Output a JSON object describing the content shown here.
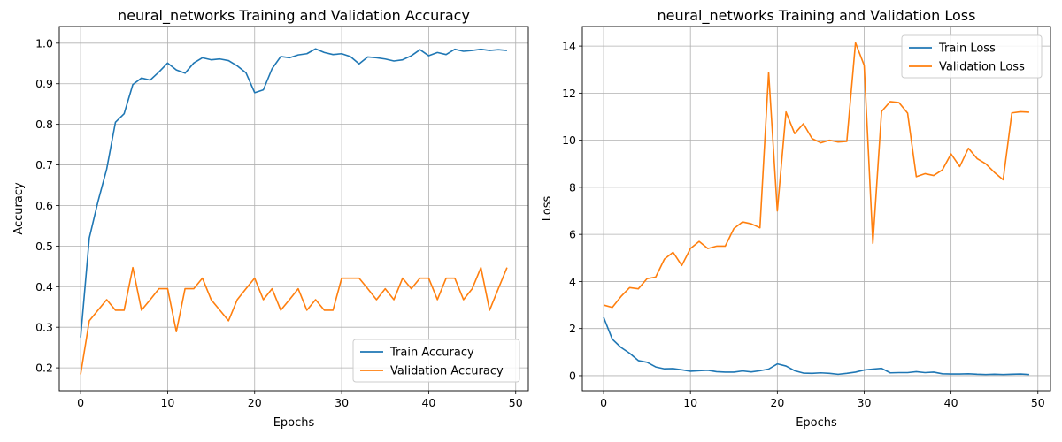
{
  "colors": {
    "train": "#1f77b4",
    "validation": "#ff7f0e",
    "grid": "#b0b0b0"
  },
  "chart_data": [
    {
      "type": "line",
      "title": "neural_networks Training and Validation Accuracy",
      "xlabel": "Epochs",
      "ylabel": "Accuracy",
      "xlim": [
        -2.45,
        51.45
      ],
      "ylim": [
        0.1436,
        1.041
      ],
      "xticks": [
        0,
        10,
        20,
        30,
        40,
        50
      ],
      "yticks": [
        0.2,
        0.3,
        0.4,
        0.5,
        0.6,
        0.7,
        0.8,
        0.9,
        1.0
      ],
      "ytick_labels": [
        "0.2",
        "0.3",
        "0.4",
        "0.5",
        "0.6",
        "0.7",
        "0.8",
        "0.9",
        "1.0"
      ],
      "grid": true,
      "legend_position": "lower-right",
      "x": [
        0,
        1,
        2,
        3,
        4,
        5,
        6,
        7,
        8,
        9,
        10,
        11,
        12,
        13,
        14,
        15,
        16,
        17,
        18,
        19,
        20,
        21,
        22,
        23,
        24,
        25,
        26,
        27,
        28,
        29,
        30,
        31,
        32,
        33,
        34,
        35,
        36,
        37,
        38,
        39,
        40,
        41,
        42,
        43,
        44,
        45,
        46,
        47,
        48,
        49
      ],
      "series": [
        {
          "name": "Train Accuracy",
          "color": "#1f77b4",
          "values": [
            0.275,
            0.52,
            0.61,
            0.69,
            0.805,
            0.826,
            0.898,
            0.914,
            0.909,
            0.929,
            0.951,
            0.934,
            0.926,
            0.951,
            0.964,
            0.959,
            0.961,
            0.957,
            0.944,
            0.927,
            0.878,
            0.885,
            0.937,
            0.967,
            0.964,
            0.971,
            0.974,
            0.986,
            0.977,
            0.972,
            0.974,
            0.967,
            0.949,
            0.966,
            0.964,
            0.961,
            0.956,
            0.959,
            0.969,
            0.984,
            0.969,
            0.977,
            0.972,
            0.985,
            0.98,
            0.982,
            0.985,
            0.982,
            0.984,
            0.982
          ]
        },
        {
          "name": "Validation Accuracy",
          "color": "#ff7f0e",
          "values": [
            0.184,
            0.316,
            0.342,
            0.368,
            0.342,
            0.342,
            0.447,
            0.342,
            0.368,
            0.395,
            0.395,
            0.289,
            0.395,
            0.395,
            0.421,
            0.368,
            0.342,
            0.316,
            0.368,
            0.395,
            0.421,
            0.368,
            0.395,
            0.342,
            0.368,
            0.395,
            0.342,
            0.368,
            0.342,
            0.342,
            0.421,
            0.421,
            0.421,
            0.395,
            0.368,
            0.395,
            0.368,
            0.421,
            0.395,
            0.421,
            0.421,
            0.368,
            0.421,
            0.421,
            0.368,
            0.395,
            0.447,
            0.342,
            0.395,
            0.447
          ]
        }
      ]
    },
    {
      "type": "line",
      "title": "neural_networks Training and Validation Loss",
      "xlabel": "Epochs",
      "ylabel": "Loss",
      "xlim": [
        -2.45,
        51.45
      ],
      "ylim": [
        -0.64,
        14.83
      ],
      "xticks": [
        0,
        10,
        20,
        30,
        40,
        50
      ],
      "yticks": [
        0,
        2,
        4,
        6,
        8,
        10,
        12,
        14
      ],
      "ytick_labels": [
        "0",
        "2",
        "4",
        "6",
        "8",
        "10",
        "12",
        "14"
      ],
      "grid": true,
      "legend_position": "upper-right",
      "x": [
        0,
        1,
        2,
        3,
        4,
        5,
        6,
        7,
        8,
        9,
        10,
        11,
        12,
        13,
        14,
        15,
        16,
        17,
        18,
        19,
        20,
        21,
        22,
        23,
        24,
        25,
        26,
        27,
        28,
        29,
        30,
        31,
        32,
        33,
        34,
        35,
        36,
        37,
        38,
        39,
        40,
        41,
        42,
        43,
        44,
        45,
        46,
        47,
        48,
        49
      ],
      "series": [
        {
          "name": "Train Loss",
          "color": "#1f77b4",
          "values": [
            2.48,
            1.55,
            1.2,
            0.95,
            0.64,
            0.57,
            0.37,
            0.29,
            0.3,
            0.25,
            0.19,
            0.21,
            0.23,
            0.17,
            0.15,
            0.15,
            0.2,
            0.16,
            0.21,
            0.28,
            0.5,
            0.41,
            0.21,
            0.11,
            0.1,
            0.12,
            0.1,
            0.06,
            0.1,
            0.15,
            0.24,
            0.28,
            0.31,
            0.12,
            0.13,
            0.13,
            0.17,
            0.13,
            0.15,
            0.08,
            0.07,
            0.07,
            0.08,
            0.06,
            0.05,
            0.06,
            0.05,
            0.06,
            0.07,
            0.05
          ]
        },
        {
          "name": "Validation Loss",
          "color": "#ff7f0e",
          "values": [
            3.0,
            2.9,
            3.36,
            3.74,
            3.69,
            4.12,
            4.19,
            4.95,
            5.24,
            4.68,
            5.4,
            5.7,
            5.4,
            5.5,
            5.5,
            6.25,
            6.53,
            6.45,
            6.28,
            12.88,
            7.0,
            11.2,
            10.28,
            10.7,
            10.07,
            9.89,
            10.0,
            9.92,
            9.95,
            14.14,
            13.18,
            5.62,
            11.22,
            11.64,
            11.6,
            11.15,
            8.45,
            8.58,
            8.5,
            8.74,
            9.42,
            8.88,
            9.66,
            9.22,
            9.0,
            8.63,
            8.32,
            11.16,
            11.21,
            11.19
          ]
        }
      ]
    }
  ]
}
